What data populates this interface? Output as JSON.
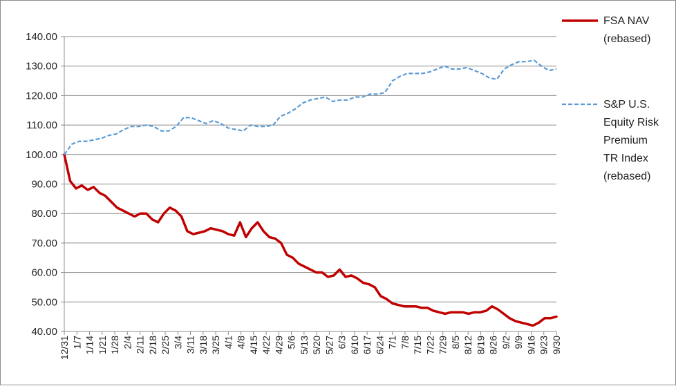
{
  "chart_data": {
    "type": "line",
    "title": "",
    "xlabel": "",
    "ylabel": "",
    "ylim": [
      40,
      140
    ],
    "y_ticks": [
      "40.00",
      "50.00",
      "60.00",
      "70.00",
      "80.00",
      "90.00",
      "100.00",
      "110.00",
      "120.00",
      "130.00",
      "140.00"
    ],
    "grid": "horizontal",
    "legend_position": "right",
    "x_labels": [
      "12/31",
      "1/7",
      "1/14",
      "1/21",
      "1/28",
      "2/4",
      "2/11",
      "2/18",
      "2/25",
      "3/4",
      "3/11",
      "3/18",
      "3/25",
      "4/1",
      "4/8",
      "4/15",
      "4/22",
      "4/29",
      "5/6",
      "5/13",
      "5/20",
      "5/27",
      "6/3",
      "6/10",
      "6/17",
      "6/24",
      "7/1",
      "7/8",
      "7/15",
      "7/22",
      "7/29",
      "8/5",
      "8/12",
      "8/19",
      "8/26",
      "9/2",
      "9/9",
      "9/16",
      "9/23",
      "9/30"
    ],
    "series": [
      {
        "name": "FSA NAV (rebased)",
        "legend_lines": [
          "FSA NAV",
          "(rebased)"
        ],
        "color": "#c00000",
        "style": "solid",
        "values": [
          100,
          91,
          88.5,
          89.5,
          88,
          89,
          87,
          86,
          84,
          82,
          81,
          80,
          79,
          80,
          80,
          78,
          77,
          80,
          82,
          81,
          79,
          74,
          73,
          73.5,
          74,
          75,
          74.5,
          74,
          73,
          72.5,
          77,
          72,
          75,
          77,
          74,
          72,
          71.5,
          70,
          66,
          65,
          63,
          62,
          61,
          60,
          60,
          58.5,
          59,
          61,
          58.5,
          59,
          58,
          56.5,
          56,
          55,
          52,
          51,
          49.5,
          49,
          48.5,
          48.5,
          48.5,
          48,
          48,
          47,
          46.5,
          46,
          46.5,
          46.5,
          46.5,
          46,
          46.5,
          46.5,
          47,
          48.5,
          47.5,
          46,
          44.5,
          43.5,
          43,
          42.5,
          42,
          43,
          44.5,
          44.5,
          45
        ]
      },
      {
        "name": "S&P U.S. Equity Risk Premium TR Index (rebased)",
        "legend_lines": [
          "S&P U.S.",
          "Equity Risk",
          "Premium",
          "TR Index",
          "(rebased)"
        ],
        "color": "#5b9bd5",
        "style": "dashed",
        "values": [
          100,
          103.5,
          104.5,
          104.5,
          105,
          105.5,
          106.5,
          107,
          108.5,
          109.5,
          109.5,
          110,
          109.5,
          108,
          108,
          109.5,
          112.5,
          112.5,
          111.5,
          110.5,
          111.5,
          110.5,
          109,
          108.5,
          108,
          110,
          109.5,
          109.5,
          110,
          113,
          114,
          115.5,
          117.5,
          118.5,
          119,
          119.5,
          118,
          118.5,
          118.5,
          119.5,
          119.5,
          120.5,
          120.5,
          121,
          125,
          126.5,
          127.5,
          127.5,
          127.5,
          128,
          129,
          130,
          129,
          129,
          129.5,
          128.5,
          127.5,
          126,
          125.5,
          129,
          130.5,
          131.5,
          131.5,
          132,
          130,
          128.5,
          129
        ]
      }
    ]
  }
}
